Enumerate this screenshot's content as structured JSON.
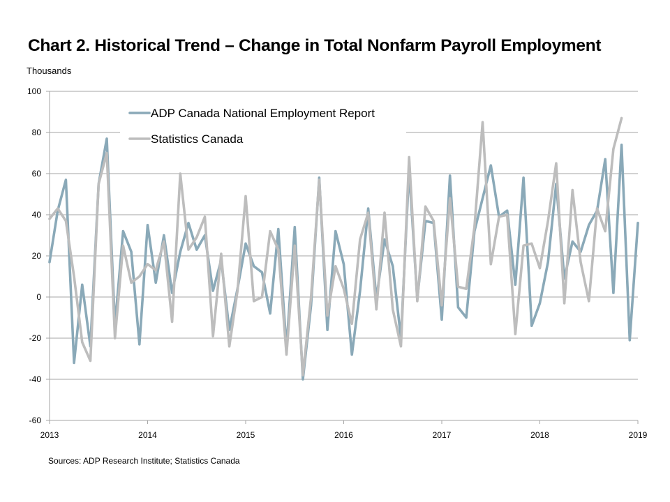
{
  "chart_data": {
    "type": "line",
    "title": "Chart 2. Historical Trend – Change in Total Nonfarm Payroll Employment",
    "ylabel": "Thousands",
    "xlabel": "",
    "ylim": [
      -60,
      100
    ],
    "yticks": [
      -60,
      -40,
      -20,
      0,
      20,
      40,
      60,
      80,
      100
    ],
    "xlim": [
      2013,
      2019
    ],
    "xticks": [
      2013,
      2014,
      2015,
      2016,
      2017,
      2018,
      2019
    ],
    "x_start": 2013,
    "x_step_months": 1,
    "grid": "horizontal",
    "legend_position": "top-left",
    "series": [
      {
        "name": "ADP Canada National Employment Report",
        "color": "#8aa9b8",
        "values": [
          17,
          42,
          57,
          -32,
          6,
          -24,
          55,
          77,
          -14,
          32,
          22,
          -23,
          35,
          7,
          30,
          2,
          22,
          36,
          23,
          30,
          3,
          18,
          -16,
          4,
          26,
          15,
          12,
          -8,
          33,
          -25,
          34,
          -40,
          -4,
          58,
          -16,
          32,
          16,
          -28,
          3,
          43,
          -1,
          28,
          15,
          -20,
          62,
          -1,
          37,
          36,
          -11,
          59,
          -5,
          -10,
          32,
          48,
          64,
          39,
          42,
          6,
          58,
          -14,
          -3,
          17,
          55,
          9,
          27,
          22,
          35,
          42,
          67,
          2,
          74,
          -21,
          36
        ],
        "values_note": ""
      },
      {
        "name": "Statistics Canada",
        "color": "#bdbdbd",
        "values": [
          38,
          43,
          37,
          10,
          -22,
          -31,
          55,
          70,
          -20,
          25,
          7,
          10,
          16,
          13,
          27,
          -12,
          60,
          23,
          29,
          39,
          -19,
          21,
          -24,
          3,
          49,
          -2,
          0,
          32,
          23,
          -28,
          25,
          -38,
          0,
          57,
          -9,
          15,
          4,
          -13,
          28,
          41,
          -6,
          41,
          -6,
          -24,
          68,
          -2,
          44,
          37,
          -4,
          48,
          5,
          4,
          34,
          85,
          16,
          39,
          40,
          -18,
          25,
          26,
          14,
          37,
          65,
          -3,
          52,
          17,
          -2,
          43,
          32,
          72,
          87
        ],
        "values_note": ""
      }
    ]
  },
  "source_note": "Sources: ADP Research Institute; Statistics Canada"
}
